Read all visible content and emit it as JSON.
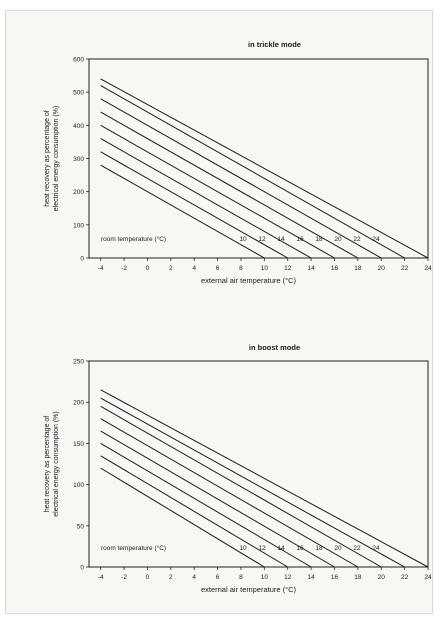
{
  "chart_data": [
    {
      "type": "line",
      "title": "in trickle mode",
      "xlabel": "external air temperature (°C)",
      "ylabel": "heat recovery as percentage of electrical energy consumption (%)",
      "xlim": [
        -5,
        24
      ],
      "ylim": [
        0,
        600
      ],
      "xticks": [
        -4,
        -2,
        0,
        2,
        4,
        6,
        8,
        10,
        12,
        14,
        16,
        18,
        20,
        22,
        24
      ],
      "yticks": [
        0,
        100,
        200,
        300,
        400,
        500,
        600
      ],
      "grid": false,
      "annotation": "room temperature (°C)",
      "series": [
        {
          "name": "10",
          "x": [
            -4,
            10
          ],
          "y": [
            280,
            0
          ]
        },
        {
          "name": "12",
          "x": [
            -4,
            12
          ],
          "y": [
            320,
            0
          ]
        },
        {
          "name": "14",
          "x": [
            -4,
            14
          ],
          "y": [
            360,
            0
          ]
        },
        {
          "name": "16",
          "x": [
            -4,
            16
          ],
          "y": [
            400,
            0
          ]
        },
        {
          "name": "18",
          "x": [
            -4,
            18
          ],
          "y": [
            440,
            0
          ]
        },
        {
          "name": "20",
          "x": [
            -4,
            20
          ],
          "y": [
            480,
            0
          ]
        },
        {
          "name": "22",
          "x": [
            -4,
            22
          ],
          "y": [
            520,
            0
          ]
        },
        {
          "name": "24",
          "x": [
            -4,
            24
          ],
          "y": [
            540,
            0
          ]
        }
      ]
    },
    {
      "type": "line",
      "title": "in boost mode",
      "xlabel": "external air temperature (°C)",
      "ylabel": "heat recovery as percentage of electrical energy consumption (%)",
      "xlim": [
        -5,
        24
      ],
      "ylim": [
        0,
        250
      ],
      "xticks": [
        -4,
        -2,
        0,
        2,
        4,
        6,
        8,
        10,
        12,
        14,
        16,
        18,
        20,
        22,
        24
      ],
      "yticks": [
        0,
        50,
        100,
        150,
        200,
        250
      ],
      "grid": false,
      "annotation": "room temperature (°C)",
      "series": [
        {
          "name": "10",
          "x": [
            -4,
            10
          ],
          "y": [
            120,
            0
          ]
        },
        {
          "name": "12",
          "x": [
            -4,
            12
          ],
          "y": [
            135,
            0
          ]
        },
        {
          "name": "14",
          "x": [
            -4,
            14
          ],
          "y": [
            150,
            0
          ]
        },
        {
          "name": "16",
          "x": [
            -4,
            16
          ],
          "y": [
            165,
            0
          ]
        },
        {
          "name": "18",
          "x": [
            -4,
            18
          ],
          "y": [
            180,
            0
          ]
        },
        {
          "name": "20",
          "x": [
            -4,
            20
          ],
          "y": [
            195,
            0
          ]
        },
        {
          "name": "22",
          "x": [
            -4,
            22
          ],
          "y": [
            205,
            0
          ]
        },
        {
          "name": "24",
          "x": [
            -4,
            24
          ],
          "y": [
            215,
            0
          ]
        }
      ]
    }
  ]
}
